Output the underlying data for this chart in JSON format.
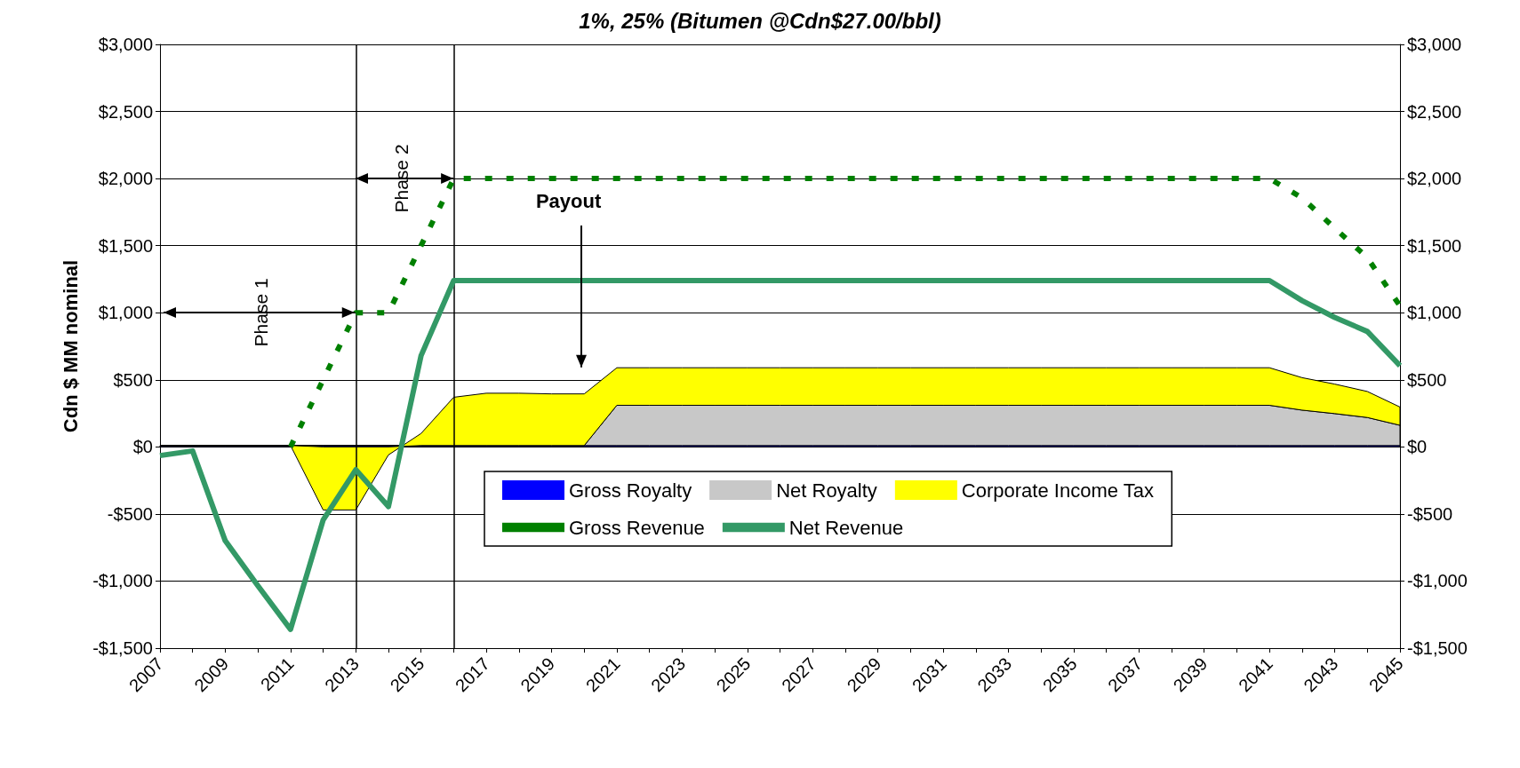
{
  "chart_data": {
    "type": "area",
    "title": "1%, 25% (Bitumen @Cdn$27.00/bbl)",
    "ylabel": "Cdn $ MM nominal",
    "x": [
      2007,
      2008,
      2009,
      2010,
      2011,
      2012,
      2013,
      2014,
      2015,
      2016,
      2017,
      2018,
      2019,
      2020,
      2021,
      2022,
      2023,
      2024,
      2025,
      2026,
      2027,
      2028,
      2029,
      2030,
      2031,
      2032,
      2033,
      2034,
      2035,
      2036,
      2037,
      2038,
      2039,
      2040,
      2041,
      2042,
      2043,
      2044,
      2045
    ],
    "stacked": true,
    "marker": "none",
    "grid": "y",
    "legend": "bottom",
    "series": [
      {
        "name": "Gross Royalty",
        "color": "#0000ff",
        "values": [
          10,
          10,
          10,
          10,
          10,
          10,
          10,
          10,
          10,
          10,
          10,
          10,
          10,
          10,
          10,
          10,
          10,
          10,
          10,
          10,
          10,
          10,
          10,
          10,
          10,
          10,
          10,
          10,
          10,
          10,
          10,
          10,
          10,
          10,
          10,
          10,
          10,
          10,
          10
        ]
      },
      {
        "name": "Net Royalty",
        "color": "#c8c8c8",
        "values": [
          0,
          0,
          0,
          0,
          0,
          0,
          0,
          0,
          0,
          0,
          0,
          0,
          0,
          0,
          300,
          300,
          300,
          300,
          300,
          300,
          300,
          300,
          300,
          300,
          300,
          300,
          300,
          300,
          300,
          300,
          300,
          300,
          300,
          300,
          300,
          264,
          238,
          209,
          151
        ]
      },
      {
        "name": "Corporate Income Tax",
        "color": "#ffff00",
        "values": [
          0,
          0,
          0,
          0,
          0,
          -470,
          -470,
          -60,
          90,
          360,
          390,
          390,
          385,
          385,
          280,
          280,
          280,
          280,
          280,
          280,
          280,
          280,
          280,
          280,
          280,
          280,
          280,
          280,
          280,
          280,
          280,
          280,
          280,
          280,
          280,
          242,
          220,
          194,
          136
        ]
      },
      {
        "name": "Gross Revenue",
        "type": "line",
        "color": "#008000",
        "line_style": "dotted",
        "values": [
          null,
          null,
          null,
          null,
          0,
          500,
          1000,
          1000,
          1500,
          2000,
          2000,
          2000,
          2000,
          2000,
          2000,
          2000,
          2000,
          2000,
          2000,
          2000,
          2000,
          2000,
          2000,
          2000,
          2000,
          2000,
          2000,
          2000,
          2000,
          2000,
          2000,
          2000,
          2000,
          2000,
          2000,
          1856,
          1630,
          1410,
          1050
        ]
      },
      {
        "name": "Net Revenue",
        "type": "line",
        "color": "#339966",
        "line_style": "solid",
        "values": [
          -65,
          -30,
          -700,
          -1035,
          -1360,
          -545,
          -170,
          -445,
          680,
          1240,
          1240,
          1240,
          1240,
          1240,
          1240,
          1240,
          1240,
          1240,
          1240,
          1240,
          1240,
          1240,
          1240,
          1240,
          1240,
          1240,
          1240,
          1240,
          1240,
          1240,
          1240,
          1240,
          1240,
          1240,
          1240,
          1090,
          965,
          860,
          605
        ]
      }
    ],
    "xlim": [
      2007,
      2045
    ],
    "xticks": [
      2007,
      {
        "value": 2008,
        "label": null
      },
      2009,
      {
        "value": 2010,
        "label": null
      },
      2011,
      {
        "value": 2012,
        "label": null
      },
      2013,
      {
        "value": 2014,
        "label": null
      },
      2015,
      {
        "value": 2016,
        "label": null
      },
      2017,
      {
        "value": 2018,
        "label": null
      },
      2019,
      {
        "value": 2020,
        "label": null
      },
      2021,
      {
        "value": 2022,
        "label": null
      },
      2023,
      {
        "value": 2024,
        "label": null
      },
      2025,
      {
        "value": 2026,
        "label": null
      },
      2027,
      {
        "value": 2028,
        "label": null
      },
      2029,
      {
        "value": 2030,
        "label": null
      },
      2031,
      {
        "value": 2032,
        "label": null
      },
      2033,
      {
        "value": 2034,
        "label": null
      },
      2035,
      {
        "value": 2036,
        "label": null
      },
      2037,
      {
        "value": 2038,
        "label": null
      },
      2039,
      {
        "value": 2040,
        "label": null
      },
      2041,
      {
        "value": 2042,
        "label": null
      },
      2043,
      {
        "value": 2044,
        "label": null
      },
      2045
    ],
    "ylim": [
      -1500,
      3000
    ],
    "yticks": [
      {
        "value": -1500,
        "label": "-$1,500"
      },
      {
        "value": -1000,
        "label": "-$1,000"
      },
      {
        "value": -500,
        "label": "-$500"
      },
      {
        "value": 0,
        "label": "$0"
      },
      {
        "value": 500,
        "label": "$500"
      },
      {
        "value": 1000,
        "label": "$1,000"
      },
      {
        "value": 1500,
        "label": "$1,500"
      },
      {
        "value": 2000,
        "label": "$2,000"
      },
      {
        "value": 2500,
        "label": "$2,500"
      },
      {
        "value": 3000,
        "label": "$3,000"
      }
    ],
    "y2lim": [
      -1500,
      3000
    ],
    "y2ticks": [
      {
        "value": -1500,
        "label": "-$1,500"
      },
      {
        "value": -1000,
        "label": "-$1,000"
      },
      {
        "value": -500,
        "label": "-$500"
      },
      {
        "value": 0,
        "label": "$0"
      },
      {
        "value": 500,
        "label": "$500"
      },
      {
        "value": 1000,
        "label": "$1,000"
      },
      {
        "value": 1500,
        "label": "$1,500"
      },
      {
        "value": 2000,
        "label": "$2,000"
      },
      {
        "value": 2500,
        "label": "$2,500"
      },
      {
        "value": 3000,
        "label": "$3,000"
      }
    ],
    "ref_lines": [
      {
        "axis": "x",
        "value": 2013,
        "color": "#000000"
      },
      {
        "axis": "x",
        "value": 2016,
        "color": "#000000"
      }
    ],
    "annotations": [
      "Phase 1",
      "Phase 2",
      "Payout"
    ]
  }
}
